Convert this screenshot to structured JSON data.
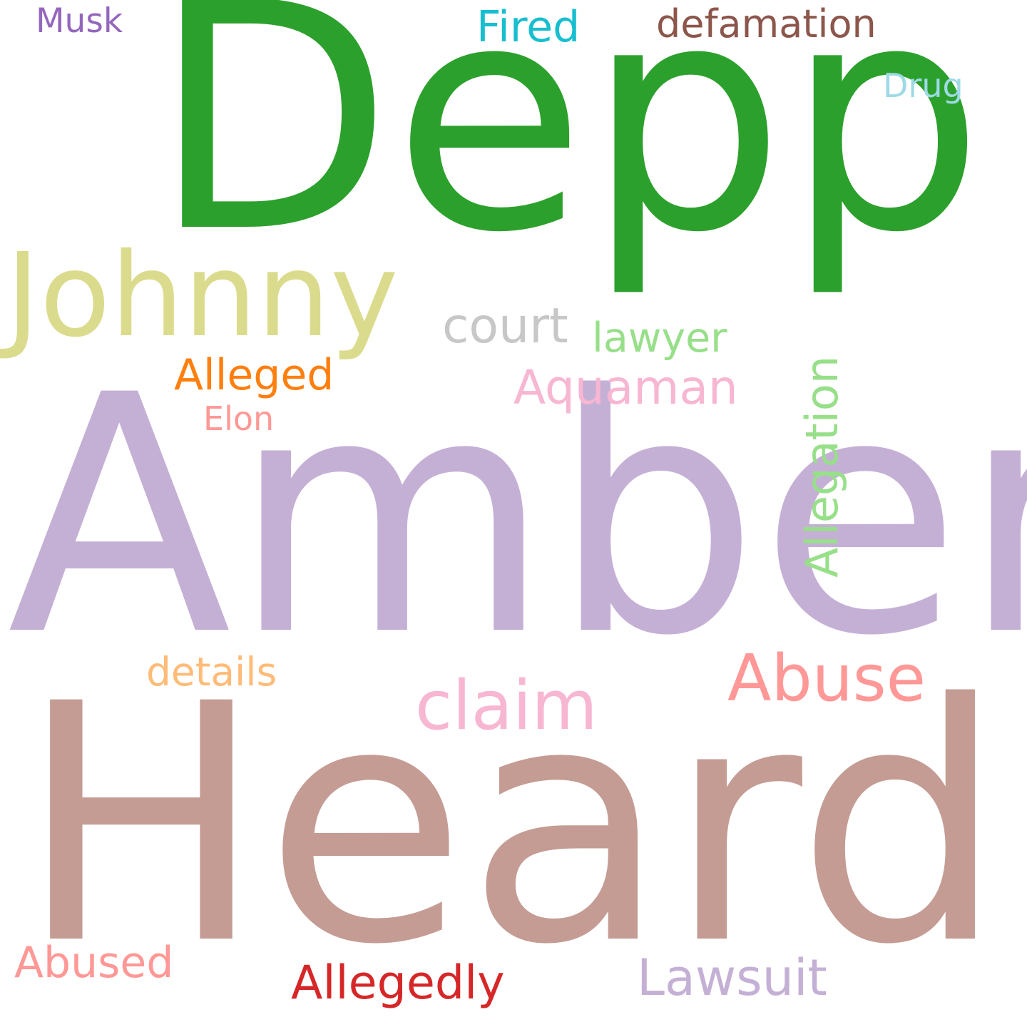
{
  "words": [
    {
      "text": "Depp",
      "color": "#2ca02c"
    },
    {
      "text": "Amber",
      "color": "#c5b0d5"
    },
    {
      "text": "Heard",
      "color": "#c49c94"
    },
    {
      "text": "Johnny",
      "color": "#dbdb8d"
    },
    {
      "text": "court",
      "color": "#c7c7c7"
    },
    {
      "text": "lawyer",
      "color": "#98df8a"
    },
    {
      "text": "Allegation",
      "color": "#98df8a"
    },
    {
      "text": "Alleged",
      "color": "#ff7f0e"
    },
    {
      "text": "Aquaman",
      "color": "#f7b6d2"
    },
    {
      "text": "Elon",
      "color": "#ff9896"
    },
    {
      "text": "Musk",
      "color": "#9467bd"
    },
    {
      "text": "Fired",
      "color": "#17becf"
    },
    {
      "text": "defamation",
      "color": "#8c564b"
    },
    {
      "text": "Drug",
      "color": "#9edae5"
    },
    {
      "text": "details",
      "color": "#ffbb78"
    },
    {
      "text": "claim",
      "color": "#f7b6d2"
    },
    {
      "text": "Abuse",
      "color": "#ff9896"
    },
    {
      "text": "Abused",
      "color": "#ff9896"
    },
    {
      "text": "Allegedly",
      "color": "#d62728"
    },
    {
      "text": "Lawsuit",
      "color": "#c5b0d5"
    }
  ]
}
